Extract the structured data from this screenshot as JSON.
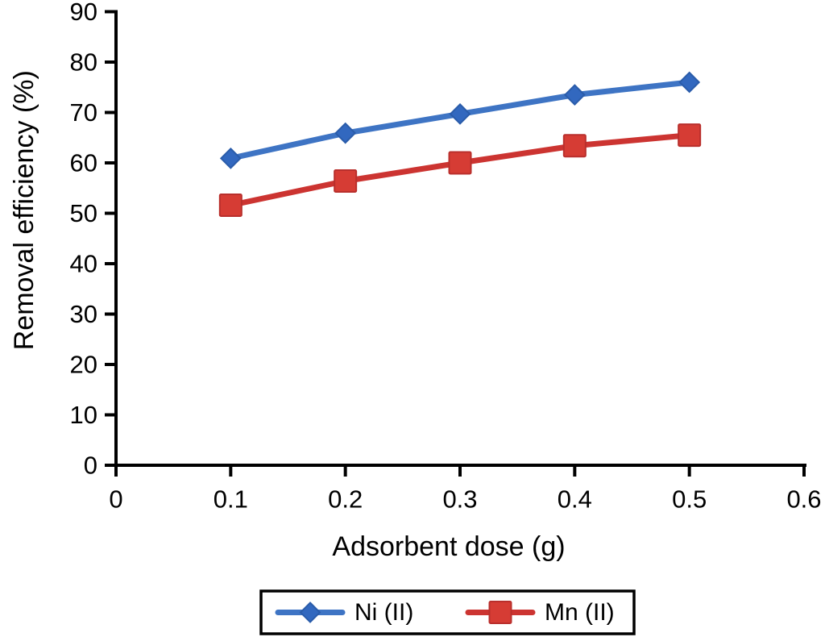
{
  "figure": {
    "background": "#ffffff",
    "text_color": "#000000"
  },
  "chart_data": {
    "type": "line",
    "title": "",
    "xlabel": "Adsorbent dose (g)",
    "ylabel": "Removal efficiency (%)",
    "xlim": [
      0,
      0.6
    ],
    "ylim": [
      0,
      90
    ],
    "x_ticks": [
      0,
      0.1,
      0.2,
      0.3,
      0.4,
      0.5,
      0.6
    ],
    "y_ticks": [
      0,
      10,
      20,
      30,
      40,
      50,
      60,
      70,
      80,
      90
    ],
    "grid": false,
    "legend_position": "bottom-outside-boxed",
    "axis_color": "#000000",
    "x": [
      0.1,
      0.2,
      0.3,
      0.4,
      0.5
    ],
    "series": [
      {
        "name": "Ni (II)",
        "marker": "diamond",
        "line_color": "#3e74c4",
        "marker_fill": "#3268bf",
        "marker_stroke": "#2a5caa",
        "values": [
          60.9,
          65.9,
          69.7,
          73.5,
          76.0
        ]
      },
      {
        "name": "Mn (II)",
        "marker": "square",
        "line_color": "#cc3431",
        "marker_fill": "#d63c34",
        "marker_stroke": "#b92f2c",
        "values": [
          51.6,
          56.4,
          60.0,
          63.4,
          65.5
        ]
      }
    ]
  }
}
